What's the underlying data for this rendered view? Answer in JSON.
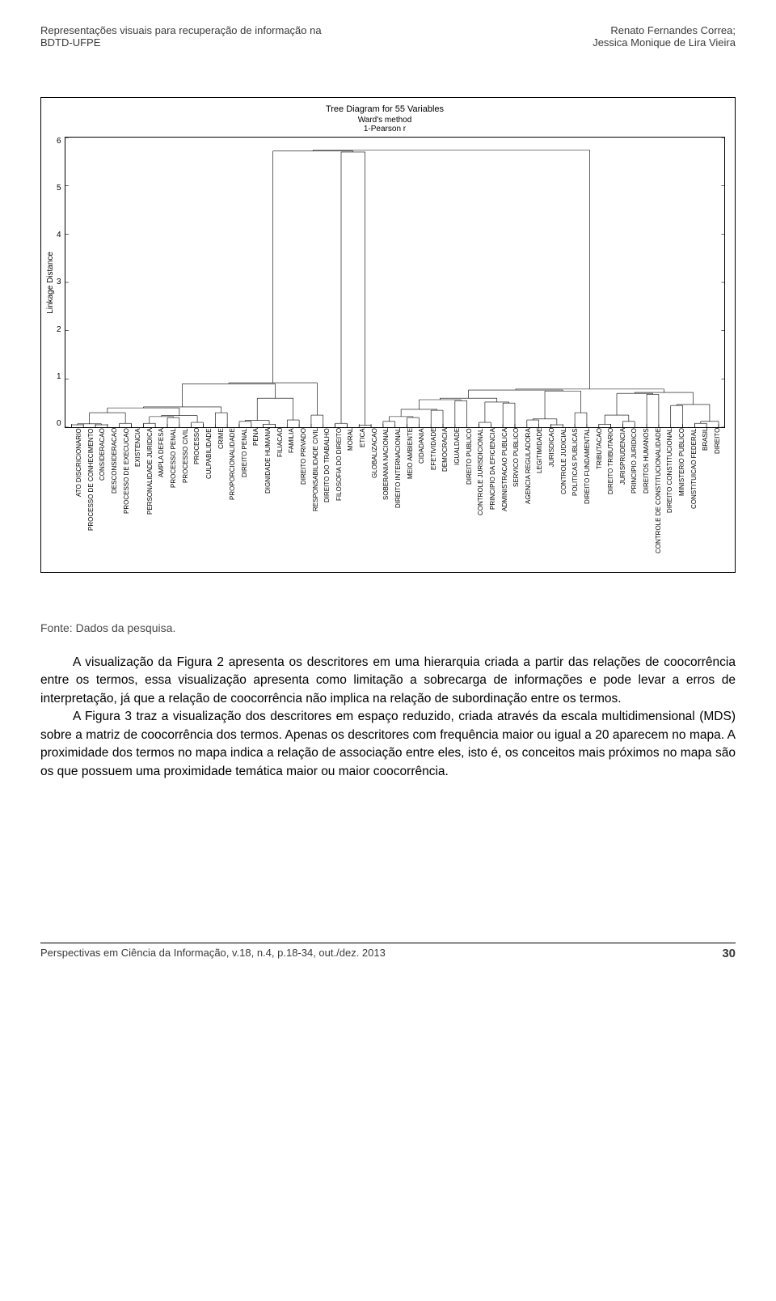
{
  "header": {
    "left_line1": "Representações visuais para recuperação de informação na",
    "left_line2": "BDTD-UFPE",
    "right_line1": "Renato Fernandes Correa;",
    "right_line2": "Jessica Monique de Lira Vieira"
  },
  "dendrogram": {
    "type": "dendrogram",
    "title": "Tree Diagram for 55 Variables",
    "subtitle1": "Ward's method",
    "subtitle2": "1-Pearson r",
    "ylabel": "Linkage Distance",
    "ylim": [
      0,
      6
    ],
    "ytick_step": 1,
    "yticks": [
      "6",
      "5",
      "4",
      "3",
      "2",
      "1",
      "0"
    ],
    "stroke_color": "#000000",
    "stroke_width": 0.6,
    "background_color": "#ffffff",
    "axis_color": "#000000",
    "label_fontsize": 8,
    "title_fontsize": 11,
    "labels": [
      "ATO DISCRICIONARIO",
      "PROCESSO DE CONHECIMENTO",
      "CONSIDERACAO",
      "DESCONSIDERACAO",
      "PROCESSO DE EXECUCAO",
      "EXISTENCIA",
      "PERSONALIDADE JURIDICA",
      "AMPLA DEFESA",
      "PROCESSO PENAL",
      "PROCESSO CIVIL",
      "PROCESSO",
      "CULPABILIDADE",
      "CRIME",
      "PROPORCIONALIDADE",
      "DIREITO PENAL",
      "PENA",
      "DIGNIDADE HUMANA",
      "FILIACAO",
      "FAMILIA",
      "DIREITO PRIVADO",
      "RESPONSABILIDADE CIVIL",
      "DIREITO DO TRABALHO",
      "FILOSOFIA DO DIREITO",
      "MORAL",
      "ETICA",
      "GLOBALIZACAO",
      "SOBERANIA NACIONAL",
      "DIREITO INTERNACIONAL",
      "MEIO AMBIENTE",
      "CIDADANIA",
      "EFETIVIDADE",
      "DEMOCRACIA",
      "IGUALDADE",
      "DIREITO PUBLICO",
      "CONTROLE JURISDICIONAL",
      "PRINCIPIO DA EFICIENCIA",
      "ADMINISTRACAO PUBLICA",
      "SERVICO PUBLICO",
      "AGENCIA REGULADORA",
      "LEGITIMIDADE",
      "JURISDICAO",
      "CONTROLE JUDICIAL",
      "POLITICAS PUBLICAS",
      "DIREITO FUNDAMENTAL",
      "TRIBUTACAO",
      "DIREITO TRIBUTARIO",
      "JURISPRUDENCIA",
      "PRINCIPIO JURIDICO",
      "DIREITOS HUMANOS",
      "CONTROLE DE CONSTITUCIONALIDADE",
      "DIREITO CONSTITUCIONAL",
      "MINISTERIO PUBLICO",
      "CONSTITUICAO FEDERAL",
      "BRASIL",
      "DIREITO"
    ],
    "merge_heights": [
      0.05,
      0.05,
      0.08,
      0.08,
      0.2,
      0.1,
      0.3,
      0.12,
      0.06,
      0.15,
      0.25,
      0.08,
      0.04,
      0.12,
      0.2,
      0.35,
      0.55,
      0.1,
      0.5,
      0.15,
      0.05,
      0.3,
      0.06,
      0.12,
      0.68,
      0.45,
      0.08,
      0.03,
      0.3,
      5.7,
      0.12,
      0.05,
      0.25,
      0.6,
      0.1,
      0.04,
      0.18,
      0.08,
      0.4,
      0.75,
      0.12,
      0.05,
      0.22,
      0.45,
      0.15,
      0.6,
      0.9,
      0.3,
      0.1,
      0.06,
      0.2,
      0.5,
      1.1,
      1.6
    ]
  },
  "caption": "Fonte: Dados da pesquisa.",
  "body": {
    "p1": "A visualização da Figura 2 apresenta os descritores em uma hierarquia criada a partir das relações de coocorrência entre os termos, essa visualização apresenta como limitação a sobrecarga de informações e pode levar a erros de interpretação, já que a relação de coocorrência não implica na relação de subordinação entre os termos.",
    "p2": "A Figura 3 traz a visualização dos descritores em espaço reduzido, criada através da escala multidimensional (MDS) sobre a matriz de coocorrência dos termos. Apenas os descritores com frequência maior ou igual a 20 aparecem no mapa. A proximidade dos termos no mapa indica a relação de associação entre eles, isto é, os conceitos mais próximos no mapa são os que possuem uma proximidade temática maior ou maior coocorrência."
  },
  "footer": {
    "left": "Perspectivas em Ciência da Informação, v.18, n.4, p.18-34, out./dez. 2013",
    "page": "30"
  }
}
